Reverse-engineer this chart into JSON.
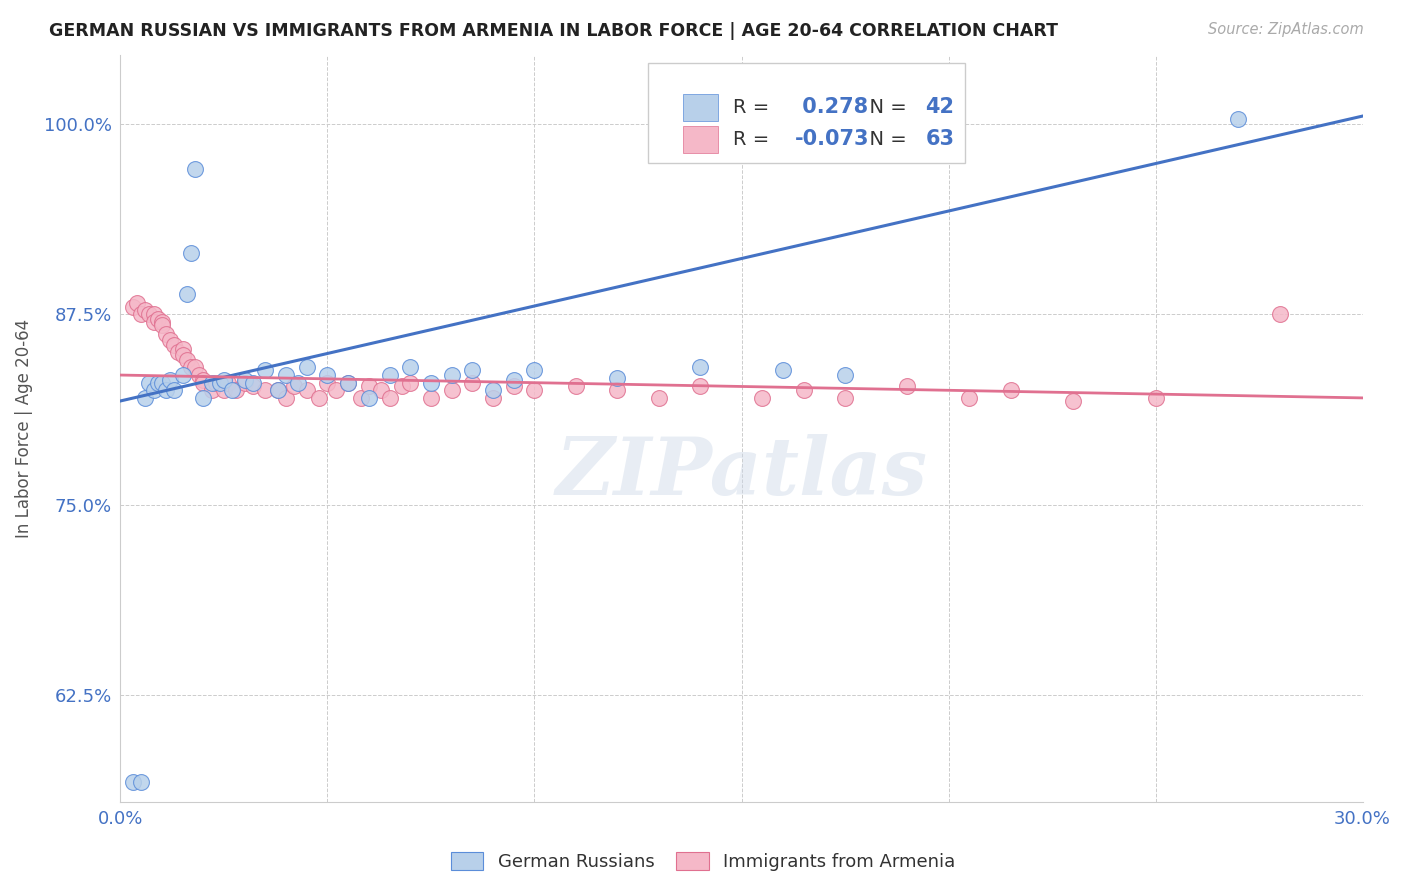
{
  "title": "GERMAN RUSSIAN VS IMMIGRANTS FROM ARMENIA IN LABOR FORCE | AGE 20-64 CORRELATION CHART",
  "source": "Source: ZipAtlas.com",
  "ylabel": "In Labor Force | Age 20-64",
  "x_min": 0.0,
  "x_max": 0.3,
  "y_min": 0.555,
  "y_max": 1.045,
  "x_tick_positions": [
    0.0,
    0.05,
    0.1,
    0.15,
    0.2,
    0.25,
    0.3
  ],
  "x_tick_labels": [
    "0.0%",
    "",
    "",
    "",
    "",
    "",
    "30.0%"
  ],
  "y_tick_positions": [
    0.625,
    0.75,
    0.875,
    1.0
  ],
  "y_tick_labels": [
    "62.5%",
    "75.0%",
    "87.5%",
    "100.0%"
  ],
  "R_blue": 0.278,
  "N_blue": 42,
  "R_pink": -0.073,
  "N_pink": 63,
  "blue_fill": "#b8d0ea",
  "blue_edge": "#5b8dd9",
  "pink_fill": "#f5b8c8",
  "pink_edge": "#e07090",
  "blue_line": "#4472c4",
  "pink_line": "#e07090",
  "legend_label_blue": "German Russians",
  "legend_label_pink": "Immigrants from Armenia",
  "blue_line_x0": 0.0,
  "blue_line_y0": 0.818,
  "blue_line_x1": 0.3,
  "blue_line_y1": 1.005,
  "pink_line_x0": 0.0,
  "pink_line_y0": 0.835,
  "pink_line_x1": 0.3,
  "pink_line_y1": 0.82,
  "watermark": "ZIPatlas",
  "background_color": "#ffffff",
  "grid_color": "#cccccc",
  "blue_x": [
    0.003,
    0.005,
    0.006,
    0.007,
    0.008,
    0.009,
    0.01,
    0.011,
    0.012,
    0.013,
    0.015,
    0.016,
    0.017,
    0.018,
    0.02,
    0.022,
    0.024,
    0.025,
    0.027,
    0.03,
    0.032,
    0.035,
    0.038,
    0.04,
    0.043,
    0.045,
    0.05,
    0.055,
    0.06,
    0.065,
    0.07,
    0.075,
    0.08,
    0.085,
    0.09,
    0.095,
    0.1,
    0.12,
    0.14,
    0.16,
    0.175,
    0.27
  ],
  "blue_y": [
    0.568,
    0.568,
    0.82,
    0.83,
    0.825,
    0.83,
    0.83,
    0.825,
    0.832,
    0.825,
    0.835,
    0.888,
    0.915,
    0.97,
    0.82,
    0.83,
    0.83,
    0.832,
    0.825,
    0.832,
    0.83,
    0.838,
    0.825,
    0.835,
    0.83,
    0.84,
    0.835,
    0.83,
    0.82,
    0.835,
    0.84,
    0.83,
    0.835,
    0.838,
    0.825,
    0.832,
    0.838,
    0.833,
    0.84,
    0.838,
    0.835,
    1.003
  ],
  "pink_x": [
    0.003,
    0.004,
    0.005,
    0.006,
    0.007,
    0.008,
    0.008,
    0.009,
    0.01,
    0.01,
    0.011,
    0.012,
    0.013,
    0.014,
    0.015,
    0.015,
    0.016,
    0.017,
    0.018,
    0.019,
    0.02,
    0.02,
    0.022,
    0.023,
    0.025,
    0.026,
    0.028,
    0.03,
    0.032,
    0.035,
    0.038,
    0.04,
    0.042,
    0.045,
    0.048,
    0.05,
    0.052,
    0.055,
    0.058,
    0.06,
    0.063,
    0.065,
    0.068,
    0.07,
    0.075,
    0.08,
    0.085,
    0.09,
    0.095,
    0.1,
    0.11,
    0.12,
    0.13,
    0.14,
    0.155,
    0.165,
    0.175,
    0.19,
    0.205,
    0.215,
    0.23,
    0.25,
    0.28
  ],
  "pink_y": [
    0.88,
    0.882,
    0.875,
    0.878,
    0.875,
    0.875,
    0.87,
    0.872,
    0.87,
    0.868,
    0.862,
    0.858,
    0.855,
    0.85,
    0.852,
    0.848,
    0.845,
    0.84,
    0.84,
    0.835,
    0.832,
    0.83,
    0.825,
    0.83,
    0.825,
    0.83,
    0.825,
    0.83,
    0.828,
    0.825,
    0.825,
    0.82,
    0.828,
    0.825,
    0.82,
    0.83,
    0.825,
    0.83,
    0.82,
    0.828,
    0.825,
    0.82,
    0.828,
    0.83,
    0.82,
    0.825,
    0.83,
    0.82,
    0.828,
    0.825,
    0.828,
    0.825,
    0.82,
    0.828,
    0.82,
    0.825,
    0.82,
    0.828,
    0.82,
    0.825,
    0.818,
    0.82,
    0.875
  ]
}
